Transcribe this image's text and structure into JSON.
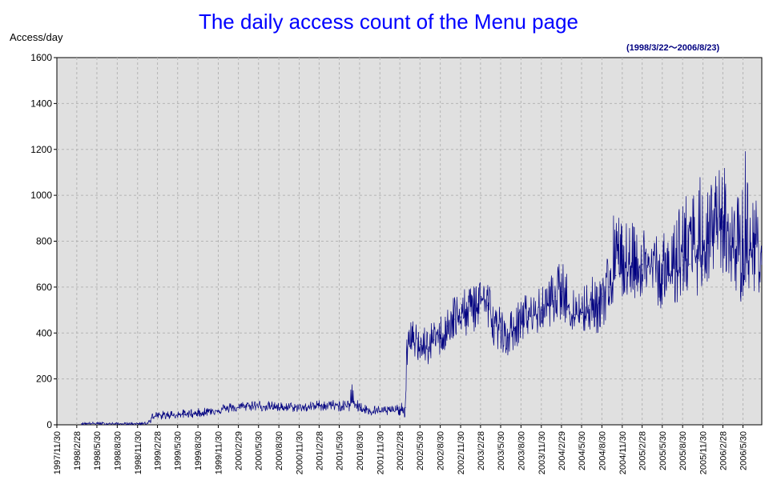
{
  "chart_data": {
    "type": "line",
    "title": "The daily access count of the Menu page",
    "subtitle": "(1998/3/22～2006/8/23)",
    "ylabel": "Access/day",
    "xlabel": "",
    "ylim": [
      0,
      1600
    ],
    "yticks": [
      "0",
      "200",
      "400",
      "600",
      "800",
      "1000",
      "1200",
      "1400",
      "1600"
    ],
    "xlim": [
      "1997/11/30",
      "2006/8/23"
    ],
    "xticks": [
      "1997/11/30",
      "1998/2/28",
      "1998/5/30",
      "1998/8/30",
      "1998/11/30",
      "1999/2/28",
      "1999/5/30",
      "1999/8/30",
      "1999/11/30",
      "2000/2/29",
      "2000/5/30",
      "2000/8/30",
      "2000/11/30",
      "2001/2/28",
      "2001/5/30",
      "2001/8/30",
      "2001/11/30",
      "2002/2/28",
      "2002/5/30",
      "2002/8/30",
      "2002/11/30",
      "2003/2/28",
      "2003/5/30",
      "2003/8/30",
      "2003/11/30",
      "2004/2/29",
      "2004/5/30",
      "2004/8/30",
      "2004/11/30",
      "2005/2/28",
      "2005/5/30",
      "2005/8/30",
      "2005/11/30",
      "2006/2/28",
      "2006/5/30"
    ],
    "grid": true,
    "plot_background": "#e0e0e0",
    "line_color": "#000080",
    "series": [
      {
        "x": [
          "1998/3/22",
          "1998/6/1",
          "1998/9/1",
          "1998/12/1",
          "1999/1/15",
          "1999/2/1",
          "1999/3/1",
          "1999/5/1",
          "1999/7/1",
          "1999/9/1",
          "1999/11/1",
          "2000/1/1",
          "2000/3/1",
          "2000/5/1",
          "2000/7/1",
          "2000/9/1",
          "2000/11/1",
          "2001/1/1",
          "2001/3/1",
          "2001/5/1",
          "2001/7/1",
          "2001/8/1",
          "2001/9/1",
          "2001/10/1",
          "2001/11/1",
          "2002/1/1",
          "2002/3/1",
          "2002/3/25",
          "2002/4/1",
          "2002/5/1",
          "2002/6/1",
          "2002/7/1",
          "2002/8/1",
          "2002/9/1",
          "2002/10/1",
          "2002/11/1",
          "2002/12/1",
          "2003/1/1",
          "2003/2/1",
          "2003/3/1",
          "2003/4/1",
          "2003/5/1",
          "2003/6/1",
          "2003/7/1",
          "2003/8/1",
          "2003/9/1",
          "2003/10/1",
          "2003/11/1",
          "2003/12/1",
          "2004/1/1",
          "2004/2/1",
          "2004/3/1",
          "2004/4/1",
          "2004/5/1",
          "2004/6/1",
          "2004/7/1",
          "2004/8/1",
          "2004/9/1",
          "2004/10/1",
          "2004/11/1",
          "2004/12/1",
          "2005/1/1",
          "2005/2/1",
          "2005/3/1",
          "2005/4/1",
          "2005/5/1",
          "2005/6/1",
          "2005/7/1",
          "2005/8/1",
          "2005/9/1",
          "2005/10/1",
          "2005/11/1",
          "2005/12/1",
          "2006/1/1",
          "2006/2/1",
          "2006/3/1",
          "2006/4/1",
          "2006/5/1",
          "2006/6/1",
          "2006/7/1",
          "2006/8/1",
          "2006/8/23"
        ],
        "values": [
          5,
          6,
          4,
          5,
          8,
          30,
          40,
          42,
          45,
          50,
          60,
          70,
          75,
          85,
          80,
          75,
          75,
          75,
          85,
          85,
          80,
          100,
          75,
          65,
          60,
          60,
          65,
          75,
          330,
          360,
          350,
          330,
          370,
          380,
          430,
          460,
          470,
          480,
          520,
          560,
          520,
          430,
          410,
          380,
          420,
          450,
          470,
          480,
          500,
          520,
          560,
          580,
          520,
          480,
          490,
          520,
          510,
          560,
          600,
          650,
          680,
          700,
          680,
          700,
          690,
          680,
          660,
          650,
          700,
          730,
          700,
          740,
          760,
          800,
          840,
          850,
          800,
          760,
          700,
          760,
          780,
          760
        ],
        "low": [
          0,
          0,
          0,
          0,
          0,
          10,
          20,
          25,
          28,
          32,
          40,
          50,
          55,
          60,
          58,
          55,
          55,
          55,
          60,
          60,
          55,
          60,
          50,
          40,
          40,
          38,
          40,
          30,
          250,
          280,
          270,
          250,
          290,
          300,
          330,
          360,
          380,
          380,
          400,
          420,
          400,
          340,
          320,
          300,
          330,
          360,
          380,
          390,
          400,
          420,
          450,
          460,
          420,
          380,
          390,
          400,
          380,
          420,
          450,
          520,
          540,
          560,
          540,
          560,
          550,
          520,
          500,
          500,
          520,
          560,
          540,
          560,
          580,
          600,
          640,
          650,
          600,
          560,
          520,
          560,
          580,
          550
        ],
        "high": [
          12,
          12,
          10,
          10,
          15,
          50,
          60,
          65,
          68,
          72,
          85,
          95,
          100,
          110,
          105,
          100,
          98,
          98,
          110,
          110,
          105,
          210,
          100,
          90,
          85,
          85,
          90,
          110,
          440,
          460,
          450,
          420,
          460,
          480,
          540,
          580,
          580,
          600,
          650,
          700,
          660,
          540,
          520,
          480,
          520,
          560,
          580,
          590,
          600,
          640,
          680,
          720,
          650,
          600,
          620,
          660,
          640,
          700,
          780,
          1010,
          880,
          900,
          860,
          880,
          860,
          860,
          840,
          820,
          1000,
          1150,
          900,
          1180,
          1000,
          1050,
          1120,
          1170,
          1000,
          950,
          1360,
          1000,
          990,
          860
        ]
      }
    ]
  }
}
